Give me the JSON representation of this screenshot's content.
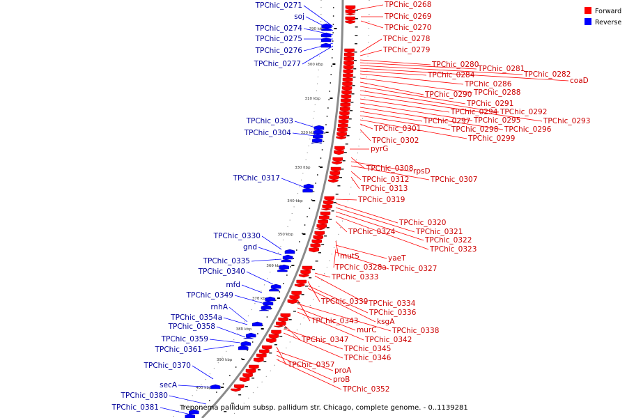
{
  "caption": "Treponema pallidum subsp. pallidum str. Chicago, complete genome. - 0..1139281",
  "legend": [
    {
      "label": "Forward",
      "color": "#ff0000"
    },
    {
      "label": "Reverse",
      "color": "#0000ff"
    }
  ],
  "colors": {
    "forward": "#ff0000",
    "forward_dark": "#b30000",
    "forward_text": "#cc0000",
    "reverse": "#0000ff",
    "reverse_dark": "#0000a0",
    "reverse_text": "#000099",
    "backbone": "#8a8a8a"
  },
  "ticks": [
    "290 kbp",
    "300 kbp",
    "310 kbp",
    "320 kbp",
    "330 kbp",
    "340 kbp",
    "350 kbp",
    "360 kbp",
    "370 kbp",
    "380 kbp",
    "390 kbp",
    "400 kbp"
  ],
  "forward_labels": [
    "TPChic_0268",
    "TPChic_0269",
    "TPChic_0270",
    "TPChic_0278",
    "TPChic_0279",
    "TPChic_0280",
    "TPChic_0281",
    "TPChic_0282",
    "coaD",
    "TPChic_0284",
    "TPChic_0286",
    "TPChic_0288",
    "TPChic_0290",
    "TPChic_0291",
    "TPChic_0292",
    "TPChic_0293",
    "TPChic_0294",
    "TPChic_0295",
    "TPChic_0296",
    "TPChic_0297",
    "TPChic_0298",
    "TPChic_0299",
    "TPChic_0301",
    "TPChic_0302",
    "pyrG",
    "TPChic_0308",
    "rpsD",
    "TPChic_0307",
    "TPChic_0312",
    "TPChic_0313",
    "TPChic_0319",
    "TPChic_0320",
    "TPChic_0321",
    "TPChic_0322",
    "TPChic_0323",
    "TPChic_0324",
    "mutS",
    "yaeT",
    "TPChic_0328a",
    "TPChic_0327",
    "TPChic_0333",
    "TPChic_0334",
    "TPChic_0339",
    "TPChic_0336",
    "ksgA",
    "TPChic_0343",
    "TPChic_0338",
    "murC",
    "TPChic_0342",
    "TPChic_0347",
    "TPChic_0345",
    "TPChic_0346",
    "TPChic_0357",
    "proA",
    "proB",
    "TPChic_0352"
  ],
  "reverse_labels": [
    "TPChic_0271",
    "soj",
    "TPChic_0274",
    "TPChic_0275",
    "TPChic_0276",
    "TPChic_0277",
    "TPChic_0303",
    "TPChic_0304",
    "TPChic_0317",
    "TPChic_0330",
    "gnd",
    "TPChic_0335",
    "TPChic_0340",
    "mfd",
    "TPChic_0349",
    "rnhA",
    "TPChic_0354a",
    "TPChic_0358",
    "TPChic_0359",
    "TPChic_0361",
    "TPChic_0370",
    "secA",
    "TPChic_0380",
    "TPChic_0381"
  ]
}
